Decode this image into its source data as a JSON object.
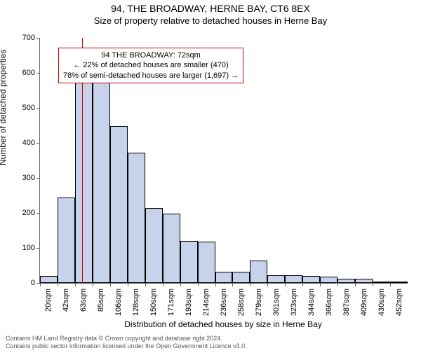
{
  "title": "94, THE BROADWAY, HERNE BAY, CT6 8EX",
  "subtitle": "Size of property relative to detached houses in Herne Bay",
  "chart": {
    "type": "bar",
    "y_axis_title": "Number of detached properties",
    "x_axis_title": "Distribution of detached houses by size in Herne Bay",
    "ylim": [
      0,
      700
    ],
    "ytick_step": 100,
    "y_ticks": [
      0,
      100,
      200,
      300,
      400,
      500,
      600,
      700
    ],
    "x_ticks": [
      "20sqm",
      "42sqm",
      "63sqm",
      "85sqm",
      "106sqm",
      "128sqm",
      "150sqm",
      "171sqm",
      "193sqm",
      "214sqm",
      "236sqm",
      "258sqm",
      "279sqm",
      "301sqm",
      "323sqm",
      "344sqm",
      "366sqm",
      "387sqm",
      "409sqm",
      "430sqm",
      "452sqm"
    ],
    "values": [
      20,
      245,
      610,
      590,
      448,
      372,
      215,
      198,
      120,
      118,
      32,
      32,
      65,
      22,
      22,
      20,
      18,
      12,
      12,
      2,
      2
    ],
    "bar_fill": "#c6d3ea",
    "bar_stroke": "#000000",
    "bar_stroke_width": 0.5,
    "background_color": "#ffffff",
    "label_fontsize": 11,
    "title_fontsize": 14,
    "subtitle_fontsize": 13,
    "axis_title_fontsize": 12,
    "reference_line": {
      "position_sqm": 72,
      "color": "#cc0000"
    },
    "annotation": {
      "line1": "94 THE BROADWAY: 72sqm",
      "line2": "← 22% of detached houses are smaller (470)",
      "line3": "78% of semi-detached houses are larger (1,697) →",
      "border_color": "#cc0000",
      "background_color": "#ffffff"
    }
  },
  "footer": {
    "line1": "Contains HM Land Registry data © Crown copyright and database right 2024.",
    "line2": "Contains public sector information licensed under the Open Government Licence v3.0."
  }
}
